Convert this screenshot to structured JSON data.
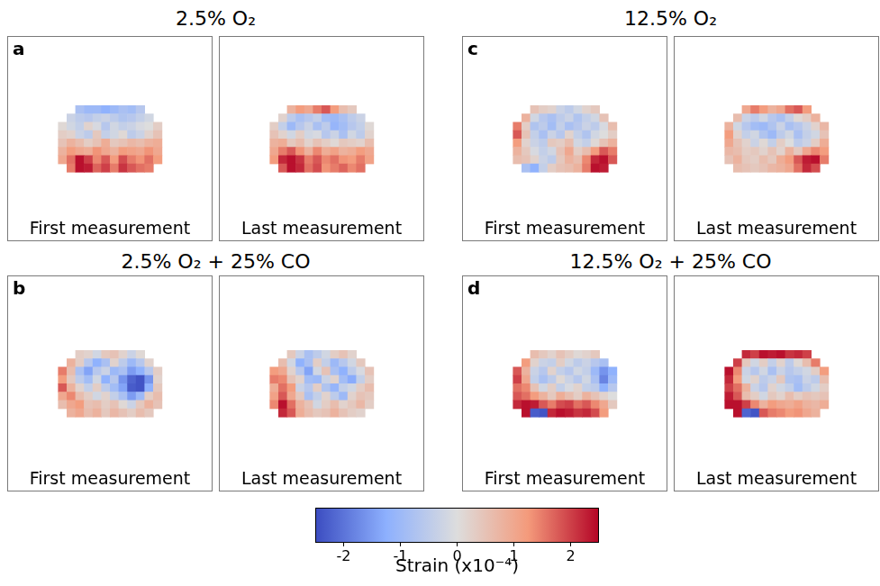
{
  "chart_data": [
    {
      "type": "heatmap",
      "letter": "a",
      "title": "2.5% O₂",
      "tick_labels": false,
      "panels": [
        {
          "label": "First measurement",
          "cells": [
            [
              null,
              null,
              -0.8,
              -1.0,
              -1.0,
              -1.2,
              -1.0,
              -0.8,
              -0.9,
              -0.6,
              null,
              null
            ],
            [
              null,
              -0.3,
              -0.5,
              -0.6,
              -0.4,
              -0.3,
              -0.5,
              -0.7,
              -0.6,
              -0.4,
              -0.2,
              null
            ],
            [
              0.1,
              -0.2,
              -0.4,
              0.2,
              -0.1,
              -0.6,
              -0.2,
              -0.4,
              -0.3,
              -0.1,
              0.0,
              0.3
            ],
            [
              0.3,
              0.2,
              -0.3,
              -0.5,
              0.4,
              -0.4,
              -0.2,
              0.1,
              -0.5,
              -0.3,
              0.2,
              0.5
            ],
            [
              0.5,
              0.8,
              0.6,
              0.3,
              0.5,
              0.9,
              0.4,
              0.5,
              0.7,
              0.6,
              0.8,
              0.9
            ],
            [
              0.8,
              1.2,
              1.0,
              0.9,
              1.3,
              1.0,
              0.8,
              1.2,
              1.1,
              1.0,
              1.3,
              1.0
            ],
            [
              1.0,
              1.6,
              2.4,
              2.0,
              1.4,
              1.8,
              1.2,
              1.9,
              1.5,
              1.3,
              1.6,
              1.2
            ],
            [
              null,
              1.5,
              2.4,
              2.3,
              1.7,
              2.0,
              1.5,
              2.1,
              1.8,
              1.6,
              1.5,
              null
            ]
          ]
        },
        {
          "label": "Last measurement",
          "cells": [
            [
              null,
              null,
              0.8,
              1.2,
              1.0,
              1.5,
              1.8,
              1.2,
              0.6,
              0.4,
              null,
              null
            ],
            [
              null,
              0.2,
              -0.5,
              -0.8,
              -0.6,
              -0.4,
              -0.9,
              -1.0,
              -0.8,
              -0.5,
              -0.3,
              null
            ],
            [
              0.3,
              -0.4,
              -1.0,
              -0.6,
              -0.3,
              -0.8,
              -0.5,
              -1.1,
              -0.9,
              -0.6,
              -0.4,
              0.1
            ],
            [
              0.5,
              0.2,
              -0.2,
              0.3,
              -0.2,
              -0.1,
              -0.6,
              -0.3,
              -0.8,
              -0.2,
              -0.5,
              0.2
            ],
            [
              0.8,
              0.9,
              0.4,
              0.6,
              0.2,
              0.5,
              0.3,
              0.1,
              0.4,
              0.3,
              0.2,
              0.6
            ],
            [
              1.0,
              1.5,
              1.8,
              1.3,
              0.8,
              1.4,
              0.9,
              1.1,
              0.8,
              0.9,
              1.2,
              1.0
            ],
            [
              1.2,
              2.2,
              2.4,
              2.1,
              1.5,
              1.8,
              1.4,
              1.6,
              1.3,
              1.2,
              1.5,
              1.1
            ],
            [
              null,
              1.8,
              2.4,
              2.2,
              1.6,
              1.9,
              1.3,
              1.5,
              1.7,
              1.4,
              1.6,
              null
            ]
          ]
        }
      ]
    },
    {
      "type": "heatmap",
      "letter": "b",
      "title": "2.5% O₂ + 25% CO",
      "tick_labels": false,
      "panels": [
        {
          "label": "First measurement",
          "cells": [
            [
              null,
              null,
              0.3,
              0.2,
              -0.2,
              0.4,
              0.5,
              0.2,
              -0.3,
              0.1,
              null,
              null
            ],
            [
              null,
              0.8,
              0.3,
              -0.6,
              -1.2,
              -0.8,
              0.2,
              -0.5,
              -1.0,
              -0.6,
              0.2,
              null
            ],
            [
              1.5,
              0.6,
              -0.8,
              -1.4,
              -0.6,
              -0.3,
              -1.0,
              -0.8,
              -1.5,
              -1.2,
              -0.6,
              0.3
            ],
            [
              1.2,
              0.4,
              -0.5,
              -0.9,
              -0.2,
              -1.2,
              -0.6,
              -1.6,
              -2.2,
              -2.4,
              -1.6,
              0.2
            ],
            [
              1.8,
              0.8,
              0.2,
              -0.4,
              0.3,
              -0.5,
              -0.9,
              -1.4,
              -2.3,
              -2.4,
              -1.2,
              0.4
            ],
            [
              1.0,
              1.4,
              0.6,
              0.3,
              -0.2,
              0.2,
              -0.4,
              -0.8,
              -1.5,
              -1.0,
              0.3,
              0.6
            ],
            [
              0.6,
              1.0,
              1.2,
              0.5,
              0.6,
              0.3,
              0.5,
              0.1,
              -0.3,
              0.4,
              0.8,
              0.5
            ],
            [
              null,
              0.8,
              1.0,
              0.6,
              0.8,
              0.4,
              0.7,
              0.5,
              0.3,
              0.6,
              0.4,
              null
            ]
          ]
        },
        {
          "label": "Last measurement",
          "cells": [
            [
              null,
              null,
              0.4,
              -0.3,
              -0.8,
              -0.5,
              -0.2,
              0.3,
              0.5,
              0.2,
              null,
              null
            ],
            [
              null,
              0.6,
              -0.2,
              -1.2,
              -0.8,
              0.3,
              -0.4,
              -1.0,
              -0.6,
              -0.2,
              0.4,
              null
            ],
            [
              1.2,
              1.0,
              0.2,
              -0.6,
              -1.4,
              -0.2,
              0.5,
              -0.8,
              -1.2,
              -0.5,
              -0.1,
              0.5
            ],
            [
              1.5,
              1.4,
              0.5,
              0.2,
              -0.9,
              -1.0,
              -0.3,
              0.2,
              -0.9,
              -1.3,
              -0.4,
              0.3
            ],
            [
              0.9,
              1.6,
              1.2,
              -0.3,
              -0.6,
              0.3,
              -0.7,
              -1.1,
              -0.4,
              -0.2,
              0.3,
              0.6
            ],
            [
              1.1,
              1.8,
              1.0,
              0.4,
              -0.8,
              -0.4,
              0.2,
              -0.5,
              -1.0,
              0.2,
              0.5,
              0.4
            ],
            [
              1.4,
              2.4,
              1.6,
              0.8,
              0.5,
              -0.2,
              0.3,
              0.6,
              0.2,
              0.4,
              0.7,
              0.3
            ],
            [
              null,
              2.2,
              1.8,
              0.9,
              0.6,
              0.4,
              0.5,
              0.8,
              0.5,
              0.3,
              0.2,
              null
            ]
          ]
        }
      ]
    },
    {
      "type": "heatmap",
      "letter": "c",
      "title": "12.5% O₂",
      "tick_labels": false,
      "panels": [
        {
          "label": "First measurement",
          "cells": [
            [
              null,
              null,
              0.5,
              0.3,
              0.2,
              -0.3,
              -0.5,
              -0.2,
              0.2,
              0.4,
              null,
              null
            ],
            [
              null,
              0.8,
              -0.2,
              -0.6,
              -0.8,
              -0.5,
              -0.3,
              -0.7,
              -0.4,
              -0.2,
              0.5,
              null
            ],
            [
              1.5,
              0.3,
              -0.7,
              -0.5,
              -0.9,
              -0.4,
              -0.8,
              -0.6,
              -0.3,
              -0.5,
              -0.1,
              0.6
            ],
            [
              1.8,
              0.5,
              -0.4,
              -0.8,
              -0.3,
              -0.6,
              0.2,
              -0.4,
              -0.7,
              -0.2,
              0.0,
              0.3
            ],
            [
              1.2,
              0.2,
              -0.3,
              -0.5,
              0.4,
              0.3,
              0.6,
              -0.2,
              -0.4,
              0.1,
              0.5,
              0.8
            ],
            [
              0.8,
              0.4,
              -0.1,
              -0.4,
              -0.2,
              0.5,
              1.0,
              0.3,
              0.6,
              1.2,
              1.8,
              1.5
            ],
            [
              0.6,
              0.5,
              0.2,
              -0.3,
              -0.5,
              0.4,
              0.8,
              0.6,
              1.4,
              2.2,
              2.4,
              1.8
            ],
            [
              null,
              -0.8,
              -1.2,
              -0.4,
              0.3,
              0.5,
              0.6,
              0.8,
              1.5,
              2.4,
              2.3,
              null
            ]
          ]
        },
        {
          "label": "Last measurement",
          "cells": [
            [
              null,
              null,
              1.0,
              1.5,
              1.2,
              0.8,
              1.0,
              1.6,
              1.8,
              1.2,
              null,
              null
            ],
            [
              null,
              0.6,
              -0.3,
              -0.5,
              -0.2,
              -0.6,
              -0.8,
              -0.4,
              0.1,
              0.3,
              0.8,
              null
            ],
            [
              0.8,
              -0.2,
              -0.6,
              -0.9,
              -1.0,
              -0.7,
              -0.3,
              -0.8,
              -0.6,
              -0.3,
              0.2,
              0.7
            ],
            [
              1.2,
              0.2,
              -0.4,
              -0.2,
              -0.7,
              -1.0,
              -0.5,
              -0.2,
              -0.8,
              -0.4,
              -0.2,
              0.5
            ],
            [
              1.0,
              0.5,
              0.2,
              -0.3,
              0.1,
              -0.4,
              0.3,
              0.0,
              -0.5,
              -0.3,
              0.3,
              0.9
            ],
            [
              0.7,
              0.6,
              0.3,
              0.4,
              0.2,
              0.5,
              0.2,
              0.8,
              0.4,
              1.0,
              1.4,
              1.2
            ],
            [
              0.5,
              0.8,
              0.4,
              0.3,
              0.6,
              0.4,
              0.9,
              1.2,
              1.8,
              2.3,
              2.4,
              1.5
            ],
            [
              null,
              0.6,
              0.5,
              0.4,
              0.5,
              0.7,
              0.8,
              1.0,
              1.6,
              2.2,
              1.9,
              null
            ]
          ]
        }
      ]
    },
    {
      "type": "heatmap",
      "letter": "d",
      "title": "12.5% O₂ + 25% CO",
      "tick_labels": false,
      "panels": [
        {
          "label": "First measurement",
          "cells": [
            [
              null,
              null,
              0.6,
              0.4,
              0.2,
              0.5,
              0.3,
              0.1,
              0.2,
              0.4,
              null,
              null
            ],
            [
              null,
              1.2,
              0.2,
              -0.3,
              -0.4,
              0.3,
              -0.2,
              -0.5,
              -0.3,
              -0.6,
              -0.8,
              null
            ],
            [
              1.8,
              0.8,
              -0.3,
              -0.6,
              0.2,
              -0.4,
              -0.6,
              -0.2,
              -0.4,
              -1.0,
              -1.6,
              -1.2
            ],
            [
              2.0,
              1.0,
              -0.4,
              -0.8,
              -0.5,
              0.1,
              -0.3,
              -0.6,
              -0.2,
              -0.8,
              -1.8,
              -1.0
            ],
            [
              1.6,
              1.4,
              0.5,
              -0.2,
              0.3,
              -0.4,
              -0.1,
              0.2,
              -0.4,
              -0.5,
              -1.2,
              -0.6
            ],
            [
              1.8,
              1.6,
              1.2,
              0.8,
              0.4,
              0.9,
              0.6,
              0.3,
              0.8,
              0.5,
              0.2,
              0.0
            ],
            [
              2.2,
              2.4,
              2.3,
              1.8,
              1.5,
              1.9,
              2.0,
              1.6,
              1.8,
              1.4,
              1.0,
              0.4
            ],
            [
              null,
              2.4,
              -2.3,
              -2.4,
              2.2,
              2.4,
              2.3,
              2.1,
              2.2,
              1.9,
              1.2,
              null
            ]
          ]
        },
        {
          "label": "Last measurement",
          "cells": [
            [
              null,
              null,
              2.2,
              2.0,
              2.4,
              2.3,
              2.4,
              2.1,
              2.2,
              2.0,
              null,
              null
            ],
            [
              null,
              2.0,
              0.4,
              -0.2,
              0.3,
              -0.4,
              0.2,
              -0.5,
              0.1,
              0.6,
              1.5,
              null
            ],
            [
              2.4,
              1.4,
              -0.3,
              -0.6,
              -0.2,
              -0.8,
              -0.3,
              -0.6,
              -0.4,
              -0.2,
              0.3,
              1.2
            ],
            [
              2.2,
              1.2,
              -0.2,
              0.2,
              -0.5,
              -0.3,
              0.4,
              -0.7,
              -0.8,
              -0.3,
              -0.5,
              0.6
            ],
            [
              2.0,
              1.6,
              0.8,
              -0.3,
              -0.6,
              0.2,
              -0.2,
              -0.4,
              -0.9,
              -0.5,
              -0.2,
              0.3
            ],
            [
              2.3,
              1.8,
              0.6,
              0.3,
              -0.2,
              0.4,
              0.2,
              0.6,
              0.3,
              0.5,
              0.4,
              0.5
            ],
            [
              2.4,
              2.4,
              2.0,
              1.4,
              0.8,
              1.2,
              1.0,
              0.9,
              1.1,
              0.8,
              0.7,
              0.9
            ],
            [
              null,
              2.4,
              -2.2,
              -2.4,
              1.8,
              1.5,
              1.4,
              1.2,
              1.3,
              1.0,
              0.8,
              null
            ]
          ]
        }
      ]
    }
  ],
  "colorbar": {
    "label": "Strain (x10⁻⁴)",
    "range": [
      -2.5,
      2.5
    ],
    "ticks": [
      -2,
      -1,
      0,
      1,
      2
    ]
  }
}
